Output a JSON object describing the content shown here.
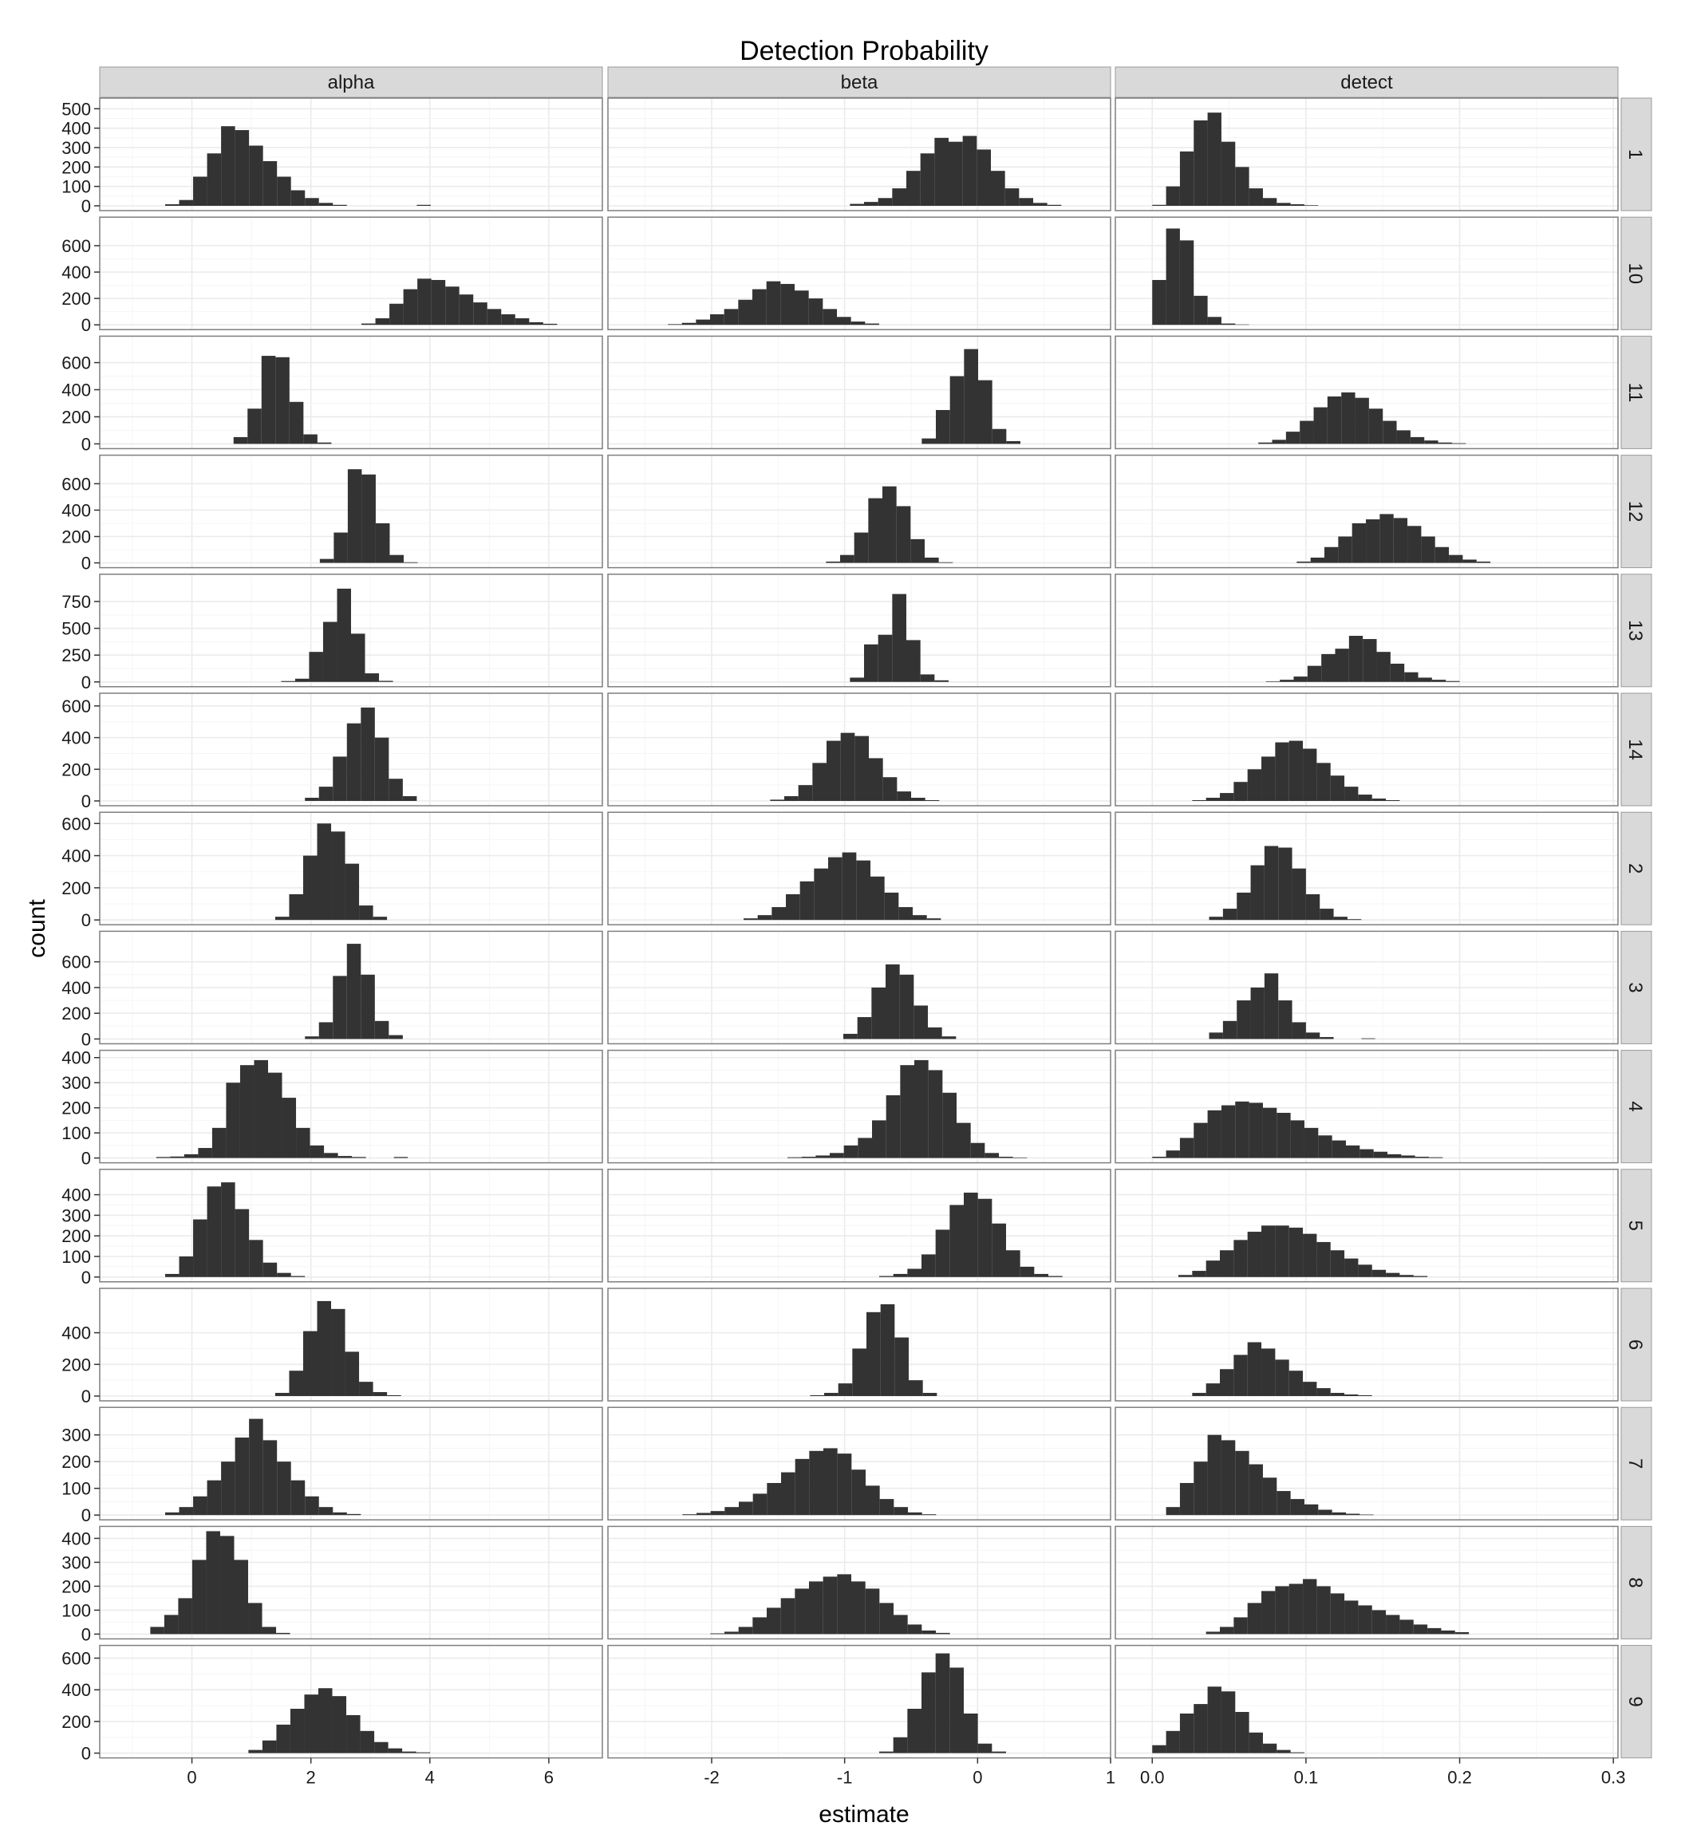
{
  "chart_data": {
    "type": "faceted-histogram",
    "title": "Detection Probability",
    "xlabel": "estimate",
    "ylabel": "count",
    "columns": [
      {
        "name": "alpha",
        "xlim": [
          -1.55,
          6.9
        ],
        "ticks": [
          0,
          2,
          4,
          6
        ],
        "tick_labels": [
          "0",
          "2",
          "4",
          "6"
        ]
      },
      {
        "name": "beta",
        "xlim": [
          -2.78,
          1.0
        ],
        "ticks": [
          -2,
          -1,
          0,
          1
        ],
        "tick_labels": [
          "-2",
          "-1",
          "0",
          "1"
        ]
      },
      {
        "name": "detect",
        "xlim": [
          -0.024,
          0.303
        ],
        "ticks": [
          0.0,
          0.1,
          0.2,
          0.3
        ],
        "tick_labels": [
          "0.0",
          "0.1",
          "0.2",
          "0.3"
        ]
      }
    ],
    "rows": [
      {
        "label": "1",
        "ymax": 530,
        "yticks": [
          0,
          100,
          200,
          300,
          400,
          500
        ],
        "hist": [
          {
            "start": -0.45,
            "width": 0.235,
            "counts": [
              8,
              30,
              150,
              270,
              410,
              390,
              310,
              230,
              150,
              80,
              40,
              15,
              5,
              0,
              0,
              0,
              0,
              0,
              5
            ]
          },
          {
            "start": -0.96,
            "width": 0.106,
            "counts": [
              10,
              20,
              40,
              90,
              180,
              270,
              350,
              330,
              360,
              290,
              180,
              90,
              40,
              15,
              5
            ]
          },
          {
            "start": 0.0,
            "width": 0.009,
            "counts": [
              5,
              100,
              280,
              440,
              480,
              330,
              200,
              90,
              40,
              15,
              8,
              3
            ]
          }
        ]
      },
      {
        "label": "10",
        "ymax": 780,
        "yticks": [
          0,
          200,
          400,
          600
        ],
        "hist": [
          {
            "start": 2.85,
            "width": 0.235,
            "counts": [
              10,
              50,
              160,
              270,
              350,
              340,
              290,
              230,
              170,
              120,
              80,
              50,
              20,
              8
            ]
          },
          {
            "start": -2.33,
            "width": 0.106,
            "counts": [
              5,
              15,
              40,
              80,
              120,
              190,
              270,
              330,
              310,
              260,
              200,
              120,
              60,
              25,
              10
            ]
          },
          {
            "start": 0.0,
            "width": 0.009,
            "counts": [
              340,
              730,
              640,
              220,
              60,
              10,
              3
            ]
          }
        ]
      },
      {
        "label": "11",
        "ymax": 760,
        "yticks": [
          0,
          200,
          400,
          600
        ],
        "hist": [
          {
            "start": 0.7,
            "width": 0.235,
            "counts": [
              50,
              260,
              650,
              640,
              310,
              70,
              10
            ]
          },
          {
            "start": -0.42,
            "width": 0.106,
            "counts": [
              40,
              250,
              500,
              700,
              470,
              110,
              20
            ]
          },
          {
            "start": 0.069,
            "width": 0.009,
            "counts": [
              10,
              30,
              90,
              170,
              270,
              350,
              380,
              340,
              260,
              170,
              100,
              50,
              25,
              10,
              5
            ]
          }
        ]
      },
      {
        "label": "12",
        "ymax": 780,
        "yticks": [
          0,
          200,
          400,
          600
        ],
        "hist": [
          {
            "start": 2.15,
            "width": 0.235,
            "counts": [
              30,
              230,
              710,
              670,
              300,
              60,
              5
            ]
          },
          {
            "start": -1.14,
            "width": 0.106,
            "counts": [
              10,
              60,
              230,
              490,
              580,
              430,
              180,
              40,
              5
            ]
          },
          {
            "start": 0.094,
            "width": 0.009,
            "counts": [
              10,
              40,
              120,
              200,
              300,
              330,
              370,
              340,
              280,
              200,
              120,
              60,
              25,
              10
            ]
          }
        ]
      },
      {
        "label": "13",
        "ymax": 960,
        "yticks": [
          0,
          250,
          500,
          750
        ],
        "hist": [
          {
            "start": 1.5,
            "width": 0.235,
            "counts": [
              8,
              30,
              280,
              560,
              870,
              450,
              80,
              10
            ]
          },
          {
            "start": -0.96,
            "width": 0.106,
            "counts": [
              40,
              350,
              440,
              820,
              390,
              70,
              15
            ]
          },
          {
            "start": 0.074,
            "width": 0.009,
            "counts": [
              5,
              20,
              50,
              150,
              260,
              310,
              430,
              400,
              280,
              170,
              90,
              40,
              20,
              8
            ]
          }
        ]
      },
      {
        "label": "14",
        "ymax": 650,
        "yticks": [
          0,
          200,
          400,
          600
        ],
        "hist": [
          {
            "start": 1.9,
            "width": 0.235,
            "counts": [
              20,
              90,
              280,
              490,
              590,
              400,
              140,
              30
            ]
          },
          {
            "start": -1.56,
            "width": 0.106,
            "counts": [
              8,
              30,
              100,
              240,
              380,
              430,
              410,
              270,
              150,
              60,
              20,
              5
            ]
          },
          {
            "start": 0.026,
            "width": 0.009,
            "counts": [
              5,
              20,
              50,
              120,
              200,
              280,
              370,
              380,
              330,
              240,
              160,
              90,
              40,
              15,
              5
            ]
          }
        ]
      },
      {
        "label": "2",
        "ymax": 640,
        "yticks": [
          0,
          200,
          400,
          600
        ],
        "hist": [
          {
            "start": 1.4,
            "width": 0.235,
            "counts": [
              20,
              160,
              400,
              600,
              550,
              350,
              90,
              20
            ]
          },
          {
            "start": -1.76,
            "width": 0.106,
            "counts": [
              10,
              30,
              80,
              160,
              240,
              320,
              390,
              420,
              370,
              270,
              170,
              80,
              30,
              10
            ]
          },
          {
            "start": 0.037,
            "width": 0.009,
            "counts": [
              20,
              70,
              170,
              340,
              460,
              450,
              320,
              160,
              70,
              20,
              5
            ]
          }
        ]
      },
      {
        "label": "3",
        "ymax": 800,
        "yticks": [
          0,
          200,
          400,
          600
        ],
        "hist": [
          {
            "start": 1.9,
            "width": 0.235,
            "counts": [
              20,
              130,
              490,
              740,
              500,
              140,
              30
            ]
          },
          {
            "start": -1.01,
            "width": 0.106,
            "counts": [
              40,
              170,
              400,
              580,
              500,
              260,
              90,
              20
            ]
          },
          {
            "start": 0.037,
            "width": 0.009,
            "counts": [
              50,
              140,
              300,
              400,
              510,
              300,
              130,
              50,
              15,
              0,
              0,
              5
            ]
          }
        ]
      },
      {
        "label": "4",
        "ymax": 410,
        "yticks": [
          0,
          100,
          200,
          300,
          400
        ],
        "hist": [
          {
            "start": -0.6,
            "width": 0.235,
            "counts": [
              4,
              6,
              15,
              40,
              120,
              300,
              370,
              390,
              340,
              240,
              120,
              50,
              20,
              8,
              4,
              0,
              0,
              4
            ]
          },
          {
            "start": -1.43,
            "width": 0.106,
            "counts": [
              3,
              5,
              10,
              20,
              50,
              80,
              150,
              250,
              370,
              390,
              350,
              260,
              140,
              60,
              20,
              5,
              2
            ]
          },
          {
            "start": 0.0,
            "width": 0.009,
            "counts": [
              5,
              30,
              80,
              140,
              190,
              210,
              225,
              220,
              200,
              180,
              150,
              120,
              90,
              70,
              50,
              35,
              25,
              15,
              10,
              5,
              3
            ]
          }
        ]
      },
      {
        "label": "5",
        "ymax": 500,
        "yticks": [
          0,
          100,
          200,
          300,
          400
        ],
        "hist": [
          {
            "start": -0.45,
            "width": 0.235,
            "counts": [
              15,
              100,
              280,
              440,
              460,
              330,
              180,
              70,
              20,
              5
            ]
          },
          {
            "start": -0.74,
            "width": 0.106,
            "counts": [
              5,
              15,
              40,
              110,
              230,
              350,
              410,
              380,
              260,
              130,
              50,
              15,
              5
            ]
          },
          {
            "start": 0.017,
            "width": 0.009,
            "counts": [
              10,
              30,
              80,
              130,
              180,
              220,
              250,
              250,
              240,
              210,
              170,
              130,
              90,
              60,
              35,
              20,
              10,
              5
            ]
          }
        ]
      },
      {
        "label": "6",
        "ymax": 650,
        "yticks": [
          0,
          200,
          400
        ],
        "hist": [
          {
            "start": 1.4,
            "width": 0.235,
            "counts": [
              20,
              160,
              410,
              600,
              550,
              280,
              90,
              25,
              5
            ]
          },
          {
            "start": -1.26,
            "width": 0.106,
            "counts": [
              5,
              20,
              80,
              300,
              530,
              580,
              370,
              100,
              20
            ]
          },
          {
            "start": 0.026,
            "width": 0.009,
            "counts": [
              20,
              80,
              170,
              260,
              340,
              300,
              230,
              160,
              90,
              50,
              20,
              10,
              5
            ]
          }
        ]
      },
      {
        "label": "7",
        "ymax": 385,
        "yticks": [
          0,
          100,
          200,
          300
        ],
        "hist": [
          {
            "start": -0.45,
            "width": 0.235,
            "counts": [
              10,
              30,
              70,
              130,
              200,
              290,
              360,
              280,
              200,
              130,
              70,
              30,
              10,
              4
            ]
          },
          {
            "start": -2.22,
            "width": 0.106,
            "counts": [
              3,
              8,
              15,
              30,
              50,
              80,
              120,
              160,
              210,
              240,
              250,
              230,
              170,
              110,
              60,
              30,
              10,
              3
            ]
          },
          {
            "start": 0.009,
            "width": 0.009,
            "counts": [
              30,
              120,
              200,
              300,
              280,
              240,
              190,
              140,
              90,
              60,
              40,
              20,
              10,
              5,
              2
            ]
          }
        ]
      },
      {
        "label": "8",
        "ymax": 430,
        "yticks": [
          0,
          100,
          200,
          300,
          400
        ],
        "hist": [
          {
            "start": -0.7,
            "width": 0.235,
            "counts": [
              30,
              80,
              150,
              310,
              430,
              410,
              310,
              130,
              30,
              5
            ]
          },
          {
            "start": -2.01,
            "width": 0.106,
            "counts": [
              3,
              10,
              30,
              70,
              110,
              150,
              190,
              220,
              240,
              250,
              220,
              190,
              130,
              80,
              40,
              15,
              5
            ]
          },
          {
            "start": 0.035,
            "width": 0.009,
            "counts": [
              10,
              30,
              70,
              130,
              180,
              200,
              210,
              230,
              200,
              170,
              140,
              120,
              100,
              80,
              60,
              40,
              25,
              15,
              8
            ]
          }
        ]
      },
      {
        "label": "9",
        "ymax": 650,
        "yticks": [
          0,
          200,
          400,
          600
        ],
        "hist": [
          {
            "start": 0.95,
            "width": 0.235,
            "counts": [
              20,
              80,
              180,
              280,
              370,
              410,
              360,
              240,
              140,
              70,
              30,
              10,
              5
            ]
          },
          {
            "start": -0.74,
            "width": 0.106,
            "counts": [
              10,
              100,
              280,
              510,
              630,
              540,
              250,
              60,
              10
            ]
          },
          {
            "start": 0.0,
            "width": 0.009,
            "counts": [
              50,
              140,
              250,
              310,
              420,
              390,
              260,
              130,
              60,
              20,
              5
            ]
          }
        ]
      }
    ]
  }
}
